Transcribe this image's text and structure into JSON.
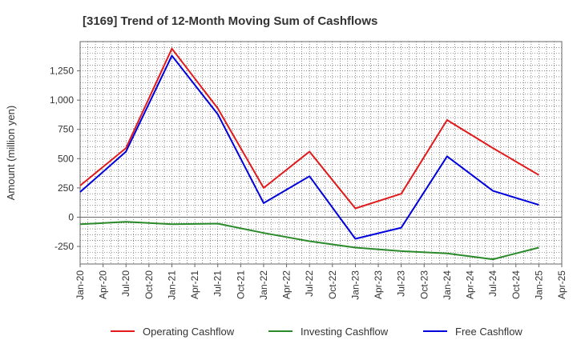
{
  "chart_data": {
    "type": "line",
    "title": "[3169]  Trend of 12-Month Moving Sum of Cashflows",
    "xlabel": "",
    "ylabel": "Amount (million yen)",
    "ylim": [
      -400,
      1500
    ],
    "yticks": [
      -250,
      0,
      250,
      500,
      750,
      1000,
      1250
    ],
    "ytick_labels": [
      "-250",
      "0",
      "250",
      "500",
      "750",
      "1,000",
      "1,250"
    ],
    "x": [
      "Jan-20",
      "Apr-20",
      "Jul-20",
      "Oct-20",
      "Jan-21",
      "Apr-21",
      "Jul-21",
      "Oct-21",
      "Jan-22",
      "Apr-22",
      "Jul-22",
      "Oct-22",
      "Jan-23",
      "Apr-23",
      "Jul-23",
      "Oct-23",
      "Jan-24",
      "Apr-24",
      "Jul-24",
      "Oct-24",
      "Jan-25",
      "Apr-25"
    ],
    "grid": true,
    "legend_position": "bottom",
    "series": [
      {
        "name": "Operating Cashflow",
        "color": "#e31a1c",
        "points": [
          [
            "Jan-20",
            270
          ],
          [
            "Jul-20",
            590
          ],
          [
            "Jan-21",
            1440
          ],
          [
            "Jul-21",
            930
          ],
          [
            "Jan-22",
            250
          ],
          [
            "Jul-22",
            560
          ],
          [
            "Jan-23",
            75
          ],
          [
            "Jul-23",
            200
          ],
          [
            "Jan-24",
            830
          ],
          [
            "Jul-24",
            590
          ],
          [
            "Jan-25",
            360
          ]
        ]
      },
      {
        "name": "Investing Cashflow",
        "color": "#2a8a2a",
        "points": [
          [
            "Jan-20",
            -60
          ],
          [
            "Jul-20",
            -40
          ],
          [
            "Jan-21",
            -60
          ],
          [
            "Jul-21",
            -55
          ],
          [
            "Jan-22",
            -135
          ],
          [
            "Jul-22",
            -205
          ],
          [
            "Jan-23",
            -260
          ],
          [
            "Jul-23",
            -290
          ],
          [
            "Jan-24",
            -310
          ],
          [
            "Jul-24",
            -360
          ],
          [
            "Jan-25",
            -260
          ]
        ]
      },
      {
        "name": "Free Cashflow",
        "color": "#0000dd",
        "points": [
          [
            "Jan-20",
            215
          ],
          [
            "Jul-20",
            560
          ],
          [
            "Jan-21",
            1380
          ],
          [
            "Jul-21",
            880
          ],
          [
            "Jan-22",
            120
          ],
          [
            "Jul-22",
            350
          ],
          [
            "Jan-23",
            -185
          ],
          [
            "Jul-23",
            -90
          ],
          [
            "Jan-24",
            520
          ],
          [
            "Jul-24",
            225
          ],
          [
            "Jan-25",
            105
          ]
        ]
      }
    ]
  }
}
